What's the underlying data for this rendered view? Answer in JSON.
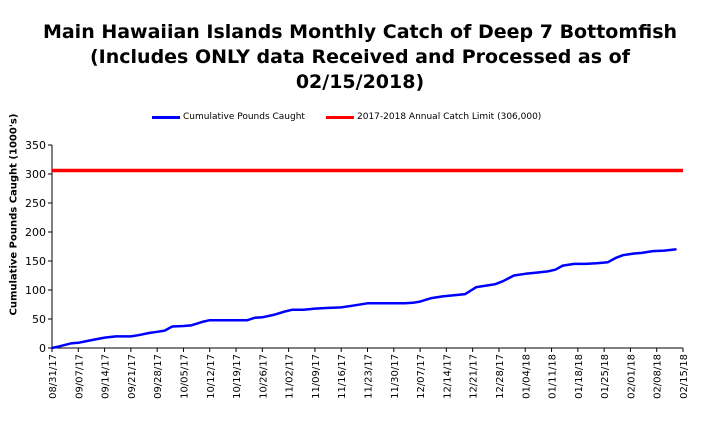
{
  "chart_data": {
    "type": "line",
    "title_lines": [
      "Main Hawaiian Islands Monthly Catch of Deep 7 Bottomfish",
      "(Includes ONLY data Received and Processed as of",
      "02/15/2018)"
    ],
    "ylabel": "Cumulative Pounds Caught (1000's)",
    "xlabel": "",
    "ylim": [
      0,
      350
    ],
    "yticks": [
      "0",
      "50",
      "100",
      "150",
      "200",
      "250",
      "300",
      "350"
    ],
    "x_tick_labels": [
      "08/31/17",
      "09/07/17",
      "09/14/17",
      "09/21/17",
      "09/28/17",
      "10/05/17",
      "10/12/17",
      "10/19/17",
      "10/26/17",
      "11/02/17",
      "11/09/17",
      "11/16/17",
      "11/23/17",
      "11/30/17",
      "12/07/17",
      "12/14/17",
      "12/21/17",
      "12/28/17",
      "01/04/18",
      "01/11/18",
      "01/18/18",
      "01/25/18",
      "02/01/18",
      "02/08/18",
      "02/15/18"
    ],
    "grid": false,
    "legend_position": "top-center",
    "series": [
      {
        "name": "Cumulative Pounds Caught",
        "color": "#0000ff",
        "x": [
          "08/31/17",
          "09/02/17",
          "09/05/17",
          "09/07/17",
          "09/10/17",
          "09/14/17",
          "09/17/17",
          "09/21/17",
          "09/23/17",
          "09/26/17",
          "09/28/17",
          "09/30/17",
          "10/02/17",
          "10/05/17",
          "10/07/17",
          "10/10/17",
          "10/12/17",
          "10/15/17",
          "10/19/17",
          "10/22/17",
          "10/24/17",
          "10/26/17",
          "10/29/17",
          "11/01/17",
          "11/03/17",
          "11/06/17",
          "11/09/17",
          "11/12/17",
          "11/16/17",
          "11/19/17",
          "11/23/17",
          "11/30/17",
          "12/03/17",
          "12/05/17",
          "12/07/17",
          "12/10/17",
          "12/13/17",
          "12/16/17",
          "12/19/17",
          "12/22/17",
          "12/25/17",
          "12/27/17",
          "12/29/17",
          "01/01/18",
          "01/04/18",
          "01/07/18",
          "01/10/18",
          "01/12/18",
          "01/14/18",
          "01/17/18",
          "01/20/18",
          "01/23/18",
          "01/26/18",
          "01/28/18",
          "01/30/18",
          "02/02/18",
          "02/04/18",
          "02/07/18",
          "02/10/18",
          "02/13/18"
        ],
        "values": [
          0,
          3,
          8,
          9,
          13,
          18,
          20,
          20,
          22,
          26,
          28,
          30,
          37,
          38,
          39,
          45,
          48,
          48,
          48,
          48,
          52,
          53,
          57,
          63,
          66,
          66,
          68,
          69,
          70,
          73,
          77,
          77,
          77,
          78,
          80,
          86,
          89,
          91,
          93,
          105,
          108,
          110,
          115,
          125,
          128,
          130,
          132,
          135,
          142,
          145,
          145,
          146,
          148,
          155,
          160,
          163,
          164,
          167,
          168,
          170
        ]
      },
      {
        "name": "2017-2018 Annual Catch Limit (306,000)",
        "color": "#ff0000",
        "constant": 306
      }
    ]
  }
}
